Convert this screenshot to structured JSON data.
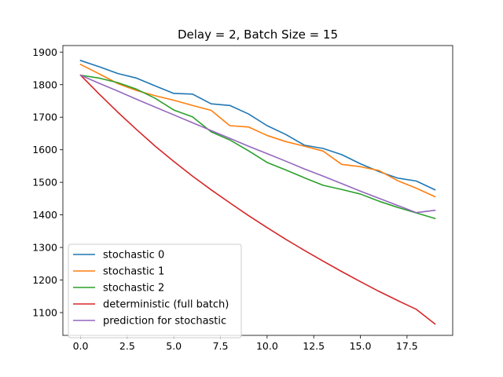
{
  "chart_data": {
    "type": "line",
    "title": "Delay = 2, Batch Size = 15",
    "xlabel": "",
    "ylabel": "",
    "xlim": [
      -0.95,
      19.95
    ],
    "ylim": [
      1030,
      1920
    ],
    "x_ticks": [
      0.0,
      2.5,
      5.0,
      7.5,
      10.0,
      12.5,
      15.0,
      17.5
    ],
    "x_tick_labels": [
      "0.0",
      "2.5",
      "5.0",
      "7.5",
      "10.0",
      "12.5",
      "15.0",
      "17.5"
    ],
    "y_ticks": [
      1100,
      1200,
      1300,
      1400,
      1500,
      1600,
      1700,
      1800,
      1900
    ],
    "y_tick_labels": [
      "1100",
      "1200",
      "1300",
      "1400",
      "1500",
      "1600",
      "1700",
      "1800",
      "1900"
    ],
    "grid": false,
    "legend_position": "lower-left",
    "x": [
      0,
      1,
      2,
      3,
      4,
      5,
      6,
      7,
      8,
      9,
      10,
      11,
      12,
      13,
      14,
      15,
      16,
      17,
      18,
      19
    ],
    "series": [
      {
        "name": "stochastic 0",
        "color": "#1f77b4",
        "values": [
          1874,
          1855,
          1834,
          1820,
          1796,
          1773,
          1771,
          1741,
          1736,
          1710,
          1674,
          1647,
          1614,
          1604,
          1585,
          1557,
          1533,
          1513,
          1504,
          1477
        ]
      },
      {
        "name": "stochastic 1",
        "color": "#ff7f0e",
        "values": [
          1862,
          1833,
          1803,
          1782,
          1766,
          1752,
          1736,
          1721,
          1674,
          1670,
          1644,
          1625,
          1611,
          1596,
          1555,
          1548,
          1536,
          1505,
          1482,
          1456
        ]
      },
      {
        "name": "stochastic 2",
        "color": "#2ca02c",
        "values": [
          1829,
          1820,
          1806,
          1786,
          1758,
          1722,
          1701,
          1655,
          1630,
          1597,
          1561,
          1538,
          1514,
          1491,
          1478,
          1464,
          1442,
          1423,
          1406,
          1389
        ]
      },
      {
        "name": "deterministic (full batch)",
        "color": "#d62728",
        "values": [
          1829,
          1771,
          1715,
          1662,
          1611,
          1564,
          1519,
          1477,
          1437,
          1398,
          1361,
          1325,
          1291,
          1258,
          1226,
          1195,
          1165,
          1137,
          1110,
          1065
        ]
      },
      {
        "name": "prediction for stochastic",
        "color": "#9467bd",
        "values": [
          1829,
          1804,
          1780,
          1755,
          1731,
          1707,
          1683,
          1659,
          1635,
          1611,
          1588,
          1565,
          1541,
          1519,
          1496,
          1473,
          1451,
          1429,
          1407,
          1414
        ]
      }
    ]
  }
}
